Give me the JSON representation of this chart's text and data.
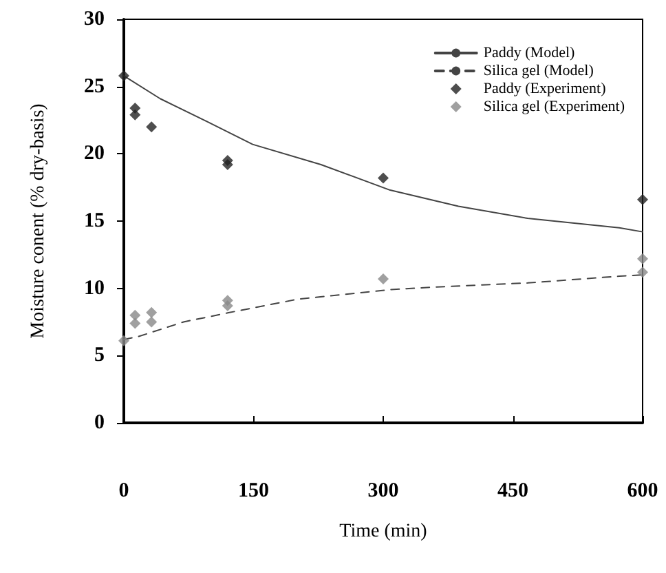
{
  "chart_data": {
    "type": "line",
    "xlabel": "Time (min)",
    "ylabel": "Moisture conent (% dry-basis)",
    "xlim": [
      0,
      600
    ],
    "xticks": [
      0,
      150,
      300,
      450,
      600
    ],
    "ylim": [
      0,
      30
    ],
    "yticks": [
      0,
      5,
      10,
      15,
      20,
      25,
      30
    ],
    "grid": false,
    "legend": "top right",
    "series": [
      {
        "name": "Paddy (Model)",
        "line_style": "solid",
        "marker": "none",
        "color": "#444444",
        "x": [
          0,
          42,
          96,
          149,
          228,
          308,
          387,
          467,
          573,
          600
        ],
        "values": [
          25.8,
          24.1,
          22.4,
          20.7,
          19.2,
          17.3,
          16.1,
          15.2,
          14.5,
          14.2
        ]
      },
      {
        "name": "Silica gel (Model)",
        "line_style": "dashed",
        "marker": "none",
        "color": "#444444",
        "x": [
          0,
          16,
          69,
          122,
          202,
          308,
          361,
          467,
          573,
          600
        ],
        "values": [
          6.2,
          6.4,
          7.5,
          8.2,
          9.2,
          9.9,
          10.1,
          10.4,
          10.9,
          11.0
        ]
      },
      {
        "name": "Paddy (Experiment)",
        "type": "scatter",
        "marker": "diamond",
        "color": "#222222",
        "x": [
          0,
          13,
          13,
          32,
          120,
          120,
          300,
          600
        ],
        "values": [
          25.8,
          23.4,
          22.9,
          22.0,
          19.5,
          19.2,
          18.2,
          16.6
        ]
      },
      {
        "name": "Silica gel (Experiment)",
        "type": "scatter",
        "marker": "diamond",
        "color": "#888888",
        "x": [
          0,
          13,
          13,
          32,
          32,
          120,
          120,
          300,
          600,
          600
        ],
        "values": [
          6.1,
          8.0,
          7.4,
          8.2,
          7.5,
          9.1,
          8.7,
          10.7,
          12.2,
          11.2
        ]
      }
    ]
  }
}
